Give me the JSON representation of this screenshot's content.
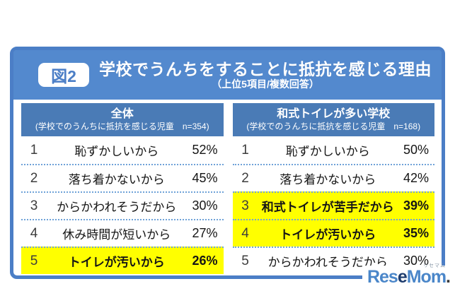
{
  "figure": {
    "badge": "図2",
    "title": "学校でうんちをすることに抵抗を感じる理由",
    "subtitle": "（上位5項目/複数回答）"
  },
  "tables": [
    {
      "header_title": "全体",
      "header_subtitle": "(学校でのうんちに抵抗を感じる児童　n=354)",
      "rows": [
        {
          "rank": "1",
          "label": "恥ずかしいから",
          "value": "52%",
          "highlight": false
        },
        {
          "rank": "2",
          "label": "落ち着かないから",
          "value": "45%",
          "highlight": false
        },
        {
          "rank": "3",
          "label": "からかわれそうだから",
          "value": "30%",
          "highlight": false
        },
        {
          "rank": "4",
          "label": "休み時間が短いから",
          "value": "27%",
          "highlight": false
        },
        {
          "rank": "5",
          "label": "トイレが汚いから",
          "value": "26%",
          "highlight": true
        }
      ]
    },
    {
      "header_title": "和式トイレが多い学校",
      "header_subtitle": "(学校でのうんちに抵抗を感じる児童　n=168)",
      "rows": [
        {
          "rank": "1",
          "label": "恥ずかしいから",
          "value": "50%",
          "highlight": false
        },
        {
          "rank": "2",
          "label": "落ち着かないから",
          "value": "42%",
          "highlight": false
        },
        {
          "rank": "3",
          "label": "和式トイレが苦手だから",
          "value": "39%",
          "highlight": true
        },
        {
          "rank": "4",
          "label": "トイレが汚いから",
          "value": "35%",
          "highlight": true
        },
        {
          "rank": "5",
          "label": "からかわれそうだから",
          "value": "30%",
          "highlight": false
        }
      ]
    }
  ],
  "logo": {
    "part1": "Res",
    "part2": "e",
    "part3": "Mom",
    "period": ".",
    "ruby": "リセマム"
  },
  "colors": {
    "band_blue": "#5389ce",
    "frame_blue": "#4b7ec6",
    "table_header_blue": "#4a7bb6",
    "highlight_yellow": "#ffff00",
    "dotted_separator_blue": "#6fa2d8",
    "logo_blue": "#4a86c9",
    "logo_dark_blue": "#1d3c6e"
  },
  "chart_data": [
    {
      "type": "table",
      "title": "全体（学校でのうんちに抵抗を感じる児童 n=354）",
      "categories": [
        "恥ずかしいから",
        "落ち着かないから",
        "からかわれそうだから",
        "休み時間が短いから",
        "トイレが汚いから"
      ],
      "values": [
        52,
        45,
        30,
        27,
        26
      ],
      "unit": "%",
      "highlighted_rows": [
        5
      ]
    },
    {
      "type": "table",
      "title": "和式トイレが多い学校（学校でのうんちに抵抗を感じる児童 n=168）",
      "categories": [
        "恥ずかしいから",
        "落ち着かないから",
        "和式トイレが苦手だから",
        "トイレが汚いから",
        "からかわれそうだから"
      ],
      "values": [
        50,
        42,
        39,
        35,
        30
      ],
      "unit": "%",
      "highlighted_rows": [
        3,
        4
      ]
    }
  ]
}
